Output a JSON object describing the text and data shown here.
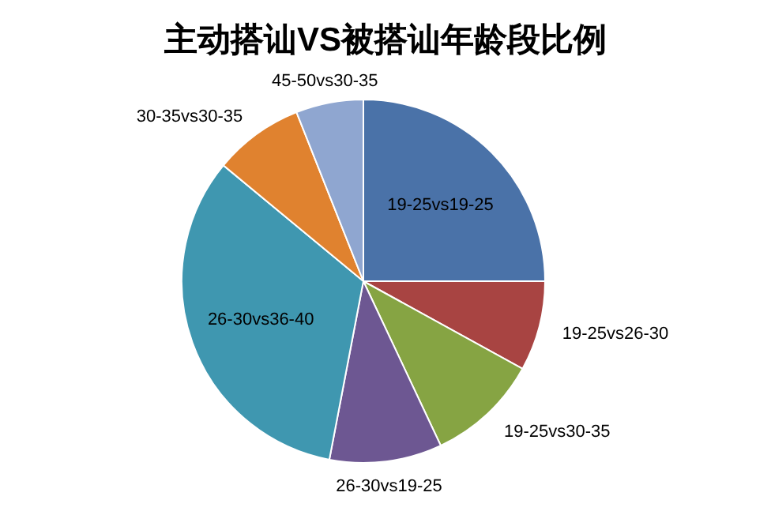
{
  "chart_data": {
    "type": "pie",
    "title": "主动搭讪VS被搭讪年龄段比例",
    "categories": [
      "19-25vs19-25",
      "19-25vs26-30",
      "19-25vs30-35",
      "26-30vs19-25",
      "26-30vs36-40",
      "30-35vs30-35",
      "45-50vs30-35"
    ],
    "values": [
      25,
      8,
      10,
      10,
      33,
      8,
      6
    ],
    "colors": [
      "#4a72a8",
      "#a84442",
      "#86a443",
      "#6d5792",
      "#3f97b0",
      "#e0822f",
      "#8fa6d0"
    ]
  }
}
